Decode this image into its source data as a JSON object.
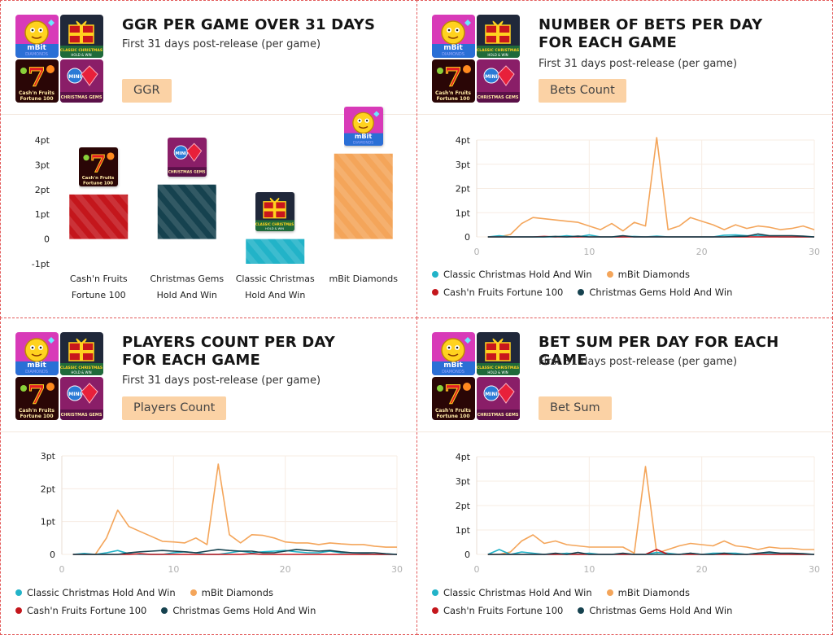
{
  "games": {
    "mbit": {
      "name": "mBit Diamonds",
      "thumb_text": "mBit",
      "thumb_sub": "DIAMONDS",
      "color": "#f4a55a",
      "dark": "#c93aa8"
    },
    "classic": {
      "name": "Classic Christmas Hold And Win",
      "thumb_text": "CLASSIC CHRISTMAS",
      "thumb_sub": "HOLD & WIN",
      "color": "#22b3c8",
      "dark": "#20283a"
    },
    "cash": {
      "name": "Cash'n Fruits Fortune 100",
      "thumb_text": "7",
      "thumb_sub": "Cash'n Fruits Fortune 100",
      "color": "#c4161c",
      "dark": "#4a0a0a"
    },
    "gems": {
      "name": "Christmas Gems Hold And Win",
      "thumb_text": "MINI",
      "thumb_sub": "CHRISTMAS GEMS",
      "color": "#16424f",
      "dark": "#8a1e68"
    }
  },
  "panels": {
    "ggr": {
      "title": "GGR PER GAME OVER 31 DAYS",
      "subtitle": "First 31 days post-release (per game)",
      "pill": "GGR"
    },
    "bets": {
      "title": "NUMBER OF BETS PER DAY\nFOR EACH GAME",
      "subtitle": "First 31 days post-release (per game)",
      "pill": "Bets Count"
    },
    "players": {
      "title": "PLAYERS COUNT  PER DAY\nFOR EACH GAME",
      "subtitle": "First 31 days post-release (per game)",
      "pill": "Players Count"
    },
    "sum": {
      "title": "BET SUM PER DAY FOR EACH GAME",
      "subtitle": "First 31 days post-release (per game)",
      "pill": "Bet Sum"
    }
  },
  "chart_data": [
    {
      "id": "ggr",
      "type": "bar",
      "title": "GGR PER GAME OVER 31 DAYS",
      "ylabel": "",
      "xlabel": "",
      "categories": [
        "Cash'n Fruits\nFortune 100",
        "Christmas Gems\nHold And Win",
        "Classic Christmas\nHold And Win",
        "mBit Diamonds"
      ],
      "games": [
        "cash",
        "gems",
        "classic",
        "mbit"
      ],
      "values": [
        1.8,
        2.2,
        -1.0,
        3.45
      ],
      "ylim": [
        -1,
        4
      ],
      "yticks": [
        "-1pt",
        "0",
        "1pt",
        "2pt",
        "3pt",
        "4pt"
      ],
      "ytick_values": [
        -1,
        0,
        1,
        2,
        3,
        4
      ]
    },
    {
      "id": "bets",
      "type": "line",
      "title": "NUMBER OF BETS PER DAY FOR EACH GAME",
      "ylim": [
        0,
        4
      ],
      "xlim": [
        0,
        30
      ],
      "yticks": [
        "0",
        "1pt",
        "2pt",
        "3pt",
        "4pt"
      ],
      "ytick_values": [
        0,
        1,
        2,
        3,
        4
      ],
      "xticks": [
        "0",
        "10",
        "20",
        "30"
      ],
      "xtick_values": [
        0,
        10,
        20,
        30
      ],
      "legend": [
        "Classic Christmas Hold And Win",
        "mBit Diamonds",
        "Cash'n Fruits Fortune 100",
        "Christmas Gems Hold And Win"
      ],
      "series": [
        {
          "name": "mBit Diamonds",
          "game": "mbit",
          "x": [
            1,
            2,
            3,
            4,
            5,
            6,
            7,
            8,
            9,
            10,
            11,
            12,
            13,
            14,
            15,
            16,
            17,
            18,
            19,
            20,
            21,
            22,
            23,
            24,
            25,
            26,
            27,
            28,
            29,
            30
          ],
          "values": [
            0,
            0,
            0.1,
            0.55,
            0.8,
            0.75,
            0.7,
            0.65,
            0.6,
            0.45,
            0.3,
            0.55,
            0.25,
            0.6,
            0.45,
            4.1,
            0.3,
            0.45,
            0.8,
            0.65,
            0.5,
            0.3,
            0.5,
            0.35,
            0.45,
            0.4,
            0.3,
            0.35,
            0.45,
            0.3
          ]
        },
        {
          "name": "Classic Christmas Hold And Win",
          "game": "classic",
          "x": [
            1,
            2,
            3,
            4,
            5,
            6,
            7,
            8,
            9,
            10,
            11,
            12,
            13,
            14,
            15,
            16,
            17,
            18,
            19,
            20,
            21,
            22,
            23,
            24,
            25,
            26,
            27,
            28,
            29,
            30
          ],
          "values": [
            0,
            0.05,
            0,
            0,
            0,
            0,
            0,
            0.05,
            0,
            0.08,
            0,
            0,
            0,
            0.02,
            0,
            0.03,
            0,
            0,
            0,
            0,
            0,
            0.07,
            0.08,
            0.05,
            0.05,
            0.03,
            0,
            0,
            0,
            0
          ]
        },
        {
          "name": "Cash'n Fruits Fortune 100",
          "game": "cash",
          "x": [
            1,
            2,
            3,
            4,
            5,
            6,
            7,
            8,
            9,
            10,
            11,
            12,
            13,
            14,
            15,
            16,
            17,
            18,
            19,
            20,
            21,
            22,
            23,
            24,
            25,
            26,
            27,
            28,
            29,
            30
          ],
          "values": [
            0,
            0,
            0,
            0,
            0,
            0.02,
            0,
            0,
            0,
            0,
            0,
            0,
            0,
            0,
            0,
            0,
            0,
            0,
            0,
            0,
            0,
            0,
            0,
            0,
            0,
            0,
            0,
            0,
            0,
            0
          ]
        },
        {
          "name": "Christmas Gems Hold And Win",
          "game": "gems",
          "x": [
            1,
            2,
            3,
            4,
            5,
            6,
            7,
            8,
            9,
            10,
            11,
            12,
            13,
            14,
            15,
            16,
            17,
            18,
            19,
            20,
            21,
            22,
            23,
            24,
            25,
            26,
            27,
            28,
            29,
            30
          ],
          "values": [
            0,
            0,
            0,
            0,
            0,
            0,
            0.02,
            0,
            0.03,
            0,
            0,
            0,
            0.05,
            0,
            0,
            0,
            0,
            0,
            0,
            0,
            0,
            0,
            0.02,
            0.03,
            0.12,
            0.05,
            0.05,
            0.05,
            0.03,
            0
          ]
        }
      ]
    },
    {
      "id": "players",
      "type": "line",
      "title": "PLAYERS COUNT PER DAY FOR EACH GAME",
      "ylim": [
        0,
        3
      ],
      "xlim": [
        0,
        30
      ],
      "yticks": [
        "0",
        "1pt",
        "2pt",
        "3pt"
      ],
      "ytick_values": [
        0,
        1,
        2,
        3
      ],
      "xticks": [
        "0",
        "10",
        "20",
        "30"
      ],
      "xtick_values": [
        0,
        10,
        20,
        30
      ],
      "legend": [
        "Classic Christmas Hold And Win",
        "mBit Diamonds",
        "Cash'n Fruits Fortune 100",
        "Christmas Gems Hold And Win"
      ],
      "series": [
        {
          "name": "mBit Diamonds",
          "game": "mbit",
          "x": [
            1,
            2,
            3,
            4,
            5,
            6,
            7,
            8,
            9,
            10,
            11,
            12,
            13,
            14,
            15,
            16,
            17,
            18,
            19,
            20,
            21,
            22,
            23,
            24,
            25,
            26,
            27,
            28,
            29,
            30
          ],
          "values": [
            0,
            0,
            0,
            0.5,
            1.35,
            0.85,
            0.7,
            0.55,
            0.4,
            0.38,
            0.35,
            0.5,
            0.3,
            2.75,
            0.6,
            0.35,
            0.6,
            0.58,
            0.5,
            0.38,
            0.35,
            0.35,
            0.3,
            0.35,
            0.32,
            0.3,
            0.3,
            0.25,
            0.22,
            0.22
          ]
        },
        {
          "name": "Classic Christmas Hold And Win",
          "game": "classic",
          "x": [
            1,
            2,
            3,
            4,
            5,
            6,
            7,
            8,
            9,
            10,
            11,
            12,
            13,
            14,
            15,
            16,
            17,
            18,
            19,
            20,
            21,
            22,
            23,
            24,
            25,
            26,
            27,
            28,
            29,
            30
          ],
          "values": [
            0,
            0.03,
            0,
            0.05,
            0.12,
            0.02,
            0,
            0,
            0,
            0.05,
            0.08,
            0.05,
            0,
            0,
            0.05,
            0.1,
            0.05,
            0.08,
            0.1,
            0.12,
            0.08,
            0.05,
            0.05,
            0.1,
            0.05,
            0.05,
            0.03,
            0,
            0,
            0
          ]
        },
        {
          "name": "Cash'n Fruits Fortune 100",
          "game": "cash",
          "x": [
            1,
            2,
            3,
            4,
            5,
            6,
            7,
            8,
            9,
            10,
            11,
            12,
            13,
            14,
            15,
            16,
            17,
            18,
            19,
            20,
            21,
            22,
            23,
            24,
            25,
            26,
            27,
            28,
            29,
            30
          ],
          "values": [
            0,
            0,
            0,
            0,
            0,
            0,
            0.02,
            0,
            0,
            0,
            0,
            0,
            0,
            0,
            0,
            0,
            0.02,
            0,
            0,
            0,
            0,
            0,
            0,
            0,
            0,
            0,
            0,
            0,
            0,
            0
          ]
        },
        {
          "name": "Christmas Gems Hold And Win",
          "game": "gems",
          "x": [
            1,
            2,
            3,
            4,
            5,
            6,
            7,
            8,
            9,
            10,
            11,
            12,
            13,
            14,
            15,
            16,
            17,
            18,
            19,
            20,
            21,
            22,
            23,
            24,
            25,
            26,
            27,
            28,
            29,
            30
          ],
          "values": [
            0,
            0,
            0,
            0,
            0,
            0.05,
            0.08,
            0.1,
            0.12,
            0.1,
            0.08,
            0.05,
            0.1,
            0.15,
            0.12,
            0.1,
            0.1,
            0.05,
            0.05,
            0.1,
            0.15,
            0.12,
            0.1,
            0.12,
            0.08,
            0.05,
            0.05,
            0.05,
            0.02,
            0
          ]
        }
      ]
    },
    {
      "id": "sum",
      "type": "line",
      "title": "BET SUM PER DAY FOR EACH GAME",
      "ylim": [
        0,
        4
      ],
      "xlim": [
        0,
        30
      ],
      "yticks": [
        "0",
        "1pt",
        "2pt",
        "3pt",
        "4pt"
      ],
      "ytick_values": [
        0,
        1,
        2,
        3,
        4
      ],
      "xticks": [
        "0",
        "10",
        "20",
        "30"
      ],
      "xtick_values": [
        0,
        10,
        20,
        30
      ],
      "legend": [
        "Classic Christmas Hold And Win",
        "mBit Diamonds",
        "Cash'n Fruits Fortune 100",
        "Christmas Gems Hold And Win"
      ],
      "series": [
        {
          "name": "mBit Diamonds",
          "game": "mbit",
          "x": [
            1,
            2,
            3,
            4,
            5,
            6,
            7,
            8,
            9,
            10,
            11,
            12,
            13,
            14,
            15,
            16,
            17,
            18,
            19,
            20,
            21,
            22,
            23,
            24,
            25,
            26,
            27,
            28,
            29,
            30
          ],
          "values": [
            0,
            0,
            0.1,
            0.55,
            0.8,
            0.45,
            0.55,
            0.4,
            0.35,
            0.3,
            0.3,
            0.3,
            0.3,
            0.05,
            3.6,
            0.05,
            0.2,
            0.35,
            0.45,
            0.4,
            0.35,
            0.55,
            0.35,
            0.3,
            0.2,
            0.3,
            0.25,
            0.25,
            0.2,
            0.2
          ]
        },
        {
          "name": "Classic Christmas Hold And Win",
          "game": "classic",
          "x": [
            1,
            2,
            3,
            4,
            5,
            6,
            7,
            8,
            9,
            10,
            11,
            12,
            13,
            14,
            15,
            16,
            17,
            18,
            19,
            20,
            21,
            22,
            23,
            24,
            25,
            26,
            27,
            28,
            29,
            30
          ],
          "values": [
            0,
            0.2,
            0,
            0.1,
            0.05,
            0,
            0,
            0.05,
            0,
            0.05,
            0,
            0,
            0,
            0,
            0,
            0.08,
            0.05,
            0,
            0.05,
            0,
            0.05,
            0.05,
            0.05,
            0,
            0.05,
            0.05,
            0.03,
            0,
            0,
            0
          ]
        },
        {
          "name": "Cash'n Fruits Fortune 100",
          "game": "cash",
          "x": [
            1,
            2,
            3,
            4,
            5,
            6,
            7,
            8,
            9,
            10,
            11,
            12,
            13,
            14,
            15,
            16,
            17,
            18,
            19,
            20,
            21,
            22,
            23,
            24,
            25,
            26,
            27,
            28,
            29,
            30
          ],
          "values": [
            0,
            0,
            0,
            0,
            0,
            0,
            0,
            0,
            0,
            0,
            0,
            0,
            0,
            0,
            0,
            0.2,
            0,
            0,
            0,
            0,
            0,
            0,
            0,
            0,
            0,
            0,
            0,
            0,
            0,
            0
          ]
        },
        {
          "name": "Christmas Gems Hold And Win",
          "game": "gems",
          "x": [
            1,
            2,
            3,
            4,
            5,
            6,
            7,
            8,
            9,
            10,
            11,
            12,
            13,
            14,
            15,
            16,
            17,
            18,
            19,
            20,
            21,
            22,
            23,
            24,
            25,
            26,
            27,
            28,
            29,
            30
          ],
          "values": [
            0,
            0,
            0,
            0,
            0,
            0,
            0.05,
            0,
            0.08,
            0,
            0,
            0,
            0.05,
            0,
            0,
            0,
            0,
            0,
            0.05,
            0,
            0,
            0.05,
            0,
            0,
            0.05,
            0.1,
            0.05,
            0.05,
            0.03,
            0
          ]
        }
      ]
    }
  ]
}
